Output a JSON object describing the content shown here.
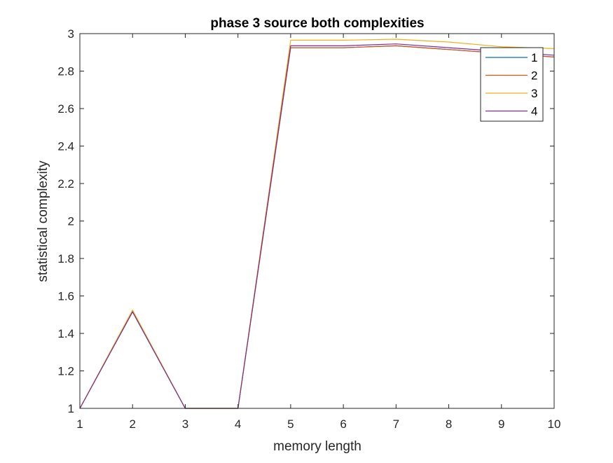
{
  "chart_data": {
    "type": "line",
    "title": "phase 3 source both complexities",
    "xlabel": "memory length",
    "ylabel": "statistical complexity",
    "xlim": [
      1,
      10
    ],
    "ylim": [
      1,
      3
    ],
    "xticks": [
      1,
      2,
      3,
      4,
      5,
      6,
      7,
      8,
      9,
      10
    ],
    "yticks": [
      1,
      1.2,
      1.4,
      1.6,
      1.8,
      2,
      2.2,
      2.4,
      2.6,
      2.8,
      3
    ],
    "x": [
      1,
      2,
      3,
      4,
      5,
      6,
      7,
      8,
      9,
      10
    ],
    "grid": false,
    "legend_position": "top-right",
    "series": [
      {
        "name": "1",
        "color": "#0072BD",
        "values": [
          1.0,
          1.515,
          1.0,
          1.0,
          2.925,
          2.925,
          2.935,
          2.915,
          2.895,
          2.875
        ]
      },
      {
        "name": "2",
        "color": "#D95319",
        "values": [
          1.0,
          1.52,
          1.0,
          1.0,
          2.925,
          2.925,
          2.935,
          2.915,
          2.895,
          2.875
        ]
      },
      {
        "name": "3",
        "color": "#EDB120",
        "values": [
          1.0,
          1.525,
          1.0,
          1.0,
          2.965,
          2.965,
          2.97,
          2.955,
          2.93,
          2.92
        ]
      },
      {
        "name": "4",
        "color": "#7E2F8E",
        "values": [
          1.0,
          1.515,
          1.0,
          1.0,
          2.935,
          2.935,
          2.945,
          2.925,
          2.905,
          2.885
        ]
      }
    ]
  }
}
